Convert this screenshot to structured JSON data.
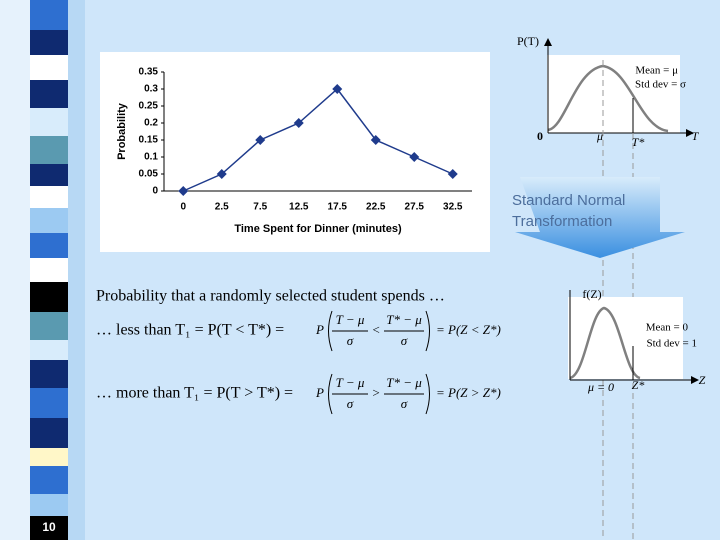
{
  "chart_data": {
    "type": "line",
    "x_label": "Time Spent for Dinner (minutes)",
    "y_label": "Probability",
    "categories": [
      "0",
      "2.5",
      "7.5",
      "12.5",
      "17.5",
      "22.5",
      "27.5",
      "32.5"
    ],
    "values": [
      0,
      0.05,
      0.15,
      0.2,
      0.3,
      0.15,
      0.1,
      0.05
    ],
    "color": "#1f3b8c",
    "ylim": [
      0,
      0.35
    ],
    "yticks": [
      0,
      0.05,
      0.1,
      0.15,
      0.2,
      0.25,
      0.3,
      0.35
    ],
    "grid": false
  },
  "top_diagram": {
    "y_axis": "P(T)",
    "mean": "Mean = μ",
    "sd": "Std dev = σ",
    "origin": "0",
    "mu": "μ",
    "tstar": "T*",
    "x_axis": "T"
  },
  "transform": {
    "line1": "Standard Normal",
    "line2": "Transformation"
  },
  "bottom_diagram": {
    "y_axis": "f(Z)",
    "mean": "Mean = 0",
    "sd": "Std dev = 1",
    "mu": "μ = 0",
    "zstar": "Z*",
    "x_axis": "Z"
  },
  "text": {
    "intro": "Probability that a randomly selected student spends …",
    "less": {
      "label": "… less than T₁ = P(T < T*) =",
      "lhs": "P",
      "num1": "T − μ",
      "den1": "σ",
      "op": "<",
      "num2": "T* − μ",
      "den2": "σ",
      "rhs": "= P(Z < Z*)"
    },
    "more": {
      "label": "… more than T₁ = P(T > T*) =",
      "lhs": "P",
      "num1": "T − μ",
      "den1": "σ",
      "op": ">",
      "num2": "T* − μ",
      "den2": "σ",
      "rhs": "= P(Z > Z*)"
    }
  },
  "slide_number": "10"
}
